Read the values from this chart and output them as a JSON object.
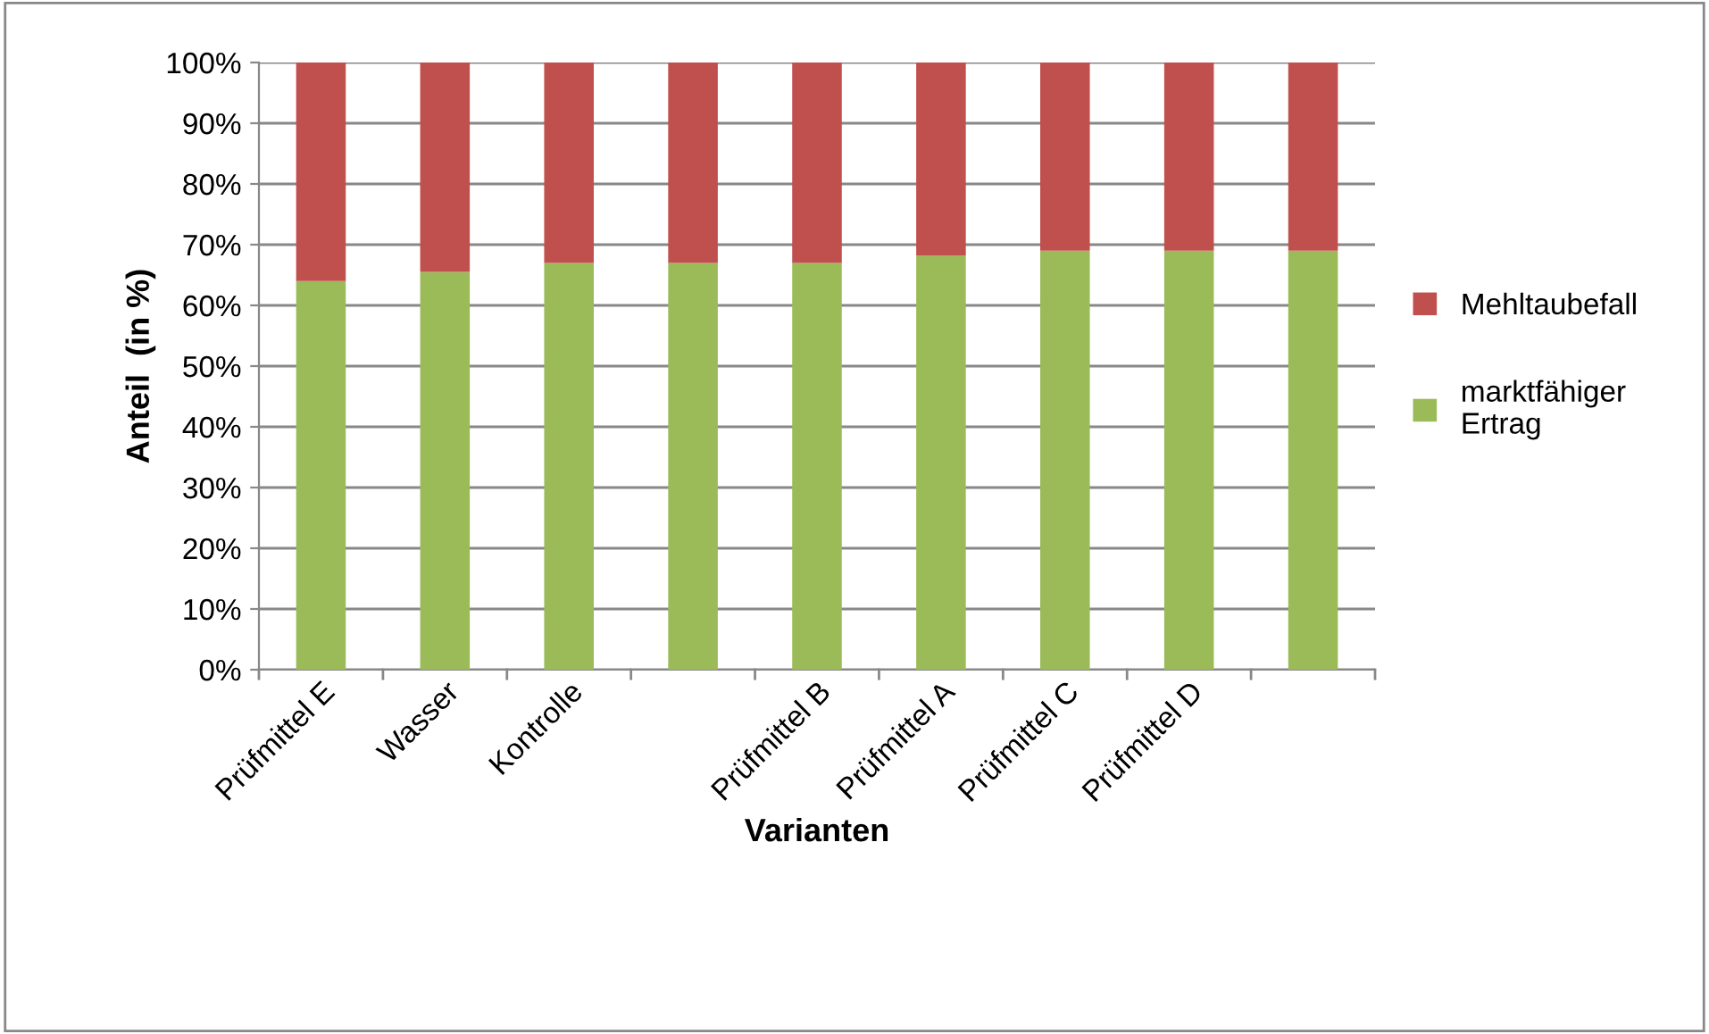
{
  "chart_data": {
    "type": "bar",
    "stacked": true,
    "xlabel": "Varianten",
    "ylabel": "Anteil  (in %)",
    "categories": [
      "Prüfmittel E",
      "Wasser",
      "Kontrolle",
      null,
      "Prüfmittel B",
      "Prüfmittel A",
      "Prüfmittel C",
      "Prüfmittel D",
      null
    ],
    "series": [
      {
        "name": "marktfähiger\nErtrag",
        "color": "#9bbb59",
        "values": [
          64,
          65.5,
          67,
          67,
          67,
          68.2,
          69,
          69,
          69
        ]
      },
      {
        "name": "Mehltaubefall",
        "color": "#c0504d",
        "values": [
          36,
          34.5,
          33,
          33,
          33,
          31.8,
          31,
          31,
          31
        ]
      }
    ],
    "ylim": [
      0,
      100
    ],
    "yticks": [
      {
        "value": 0,
        "label": "0%"
      },
      {
        "value": 10,
        "label": "10%"
      },
      {
        "value": 20,
        "label": "20%"
      },
      {
        "value": 30,
        "label": "30%"
      },
      {
        "value": 40,
        "label": "40%"
      },
      {
        "value": 50,
        "label": "50%"
      },
      {
        "value": 60,
        "label": "60%"
      },
      {
        "value": 70,
        "label": "70%"
      },
      {
        "value": 80,
        "label": "80%"
      },
      {
        "value": 90,
        "label": "90%"
      },
      {
        "value": 100,
        "label": "100%"
      }
    ],
    "grid": "y",
    "legend": "right"
  }
}
